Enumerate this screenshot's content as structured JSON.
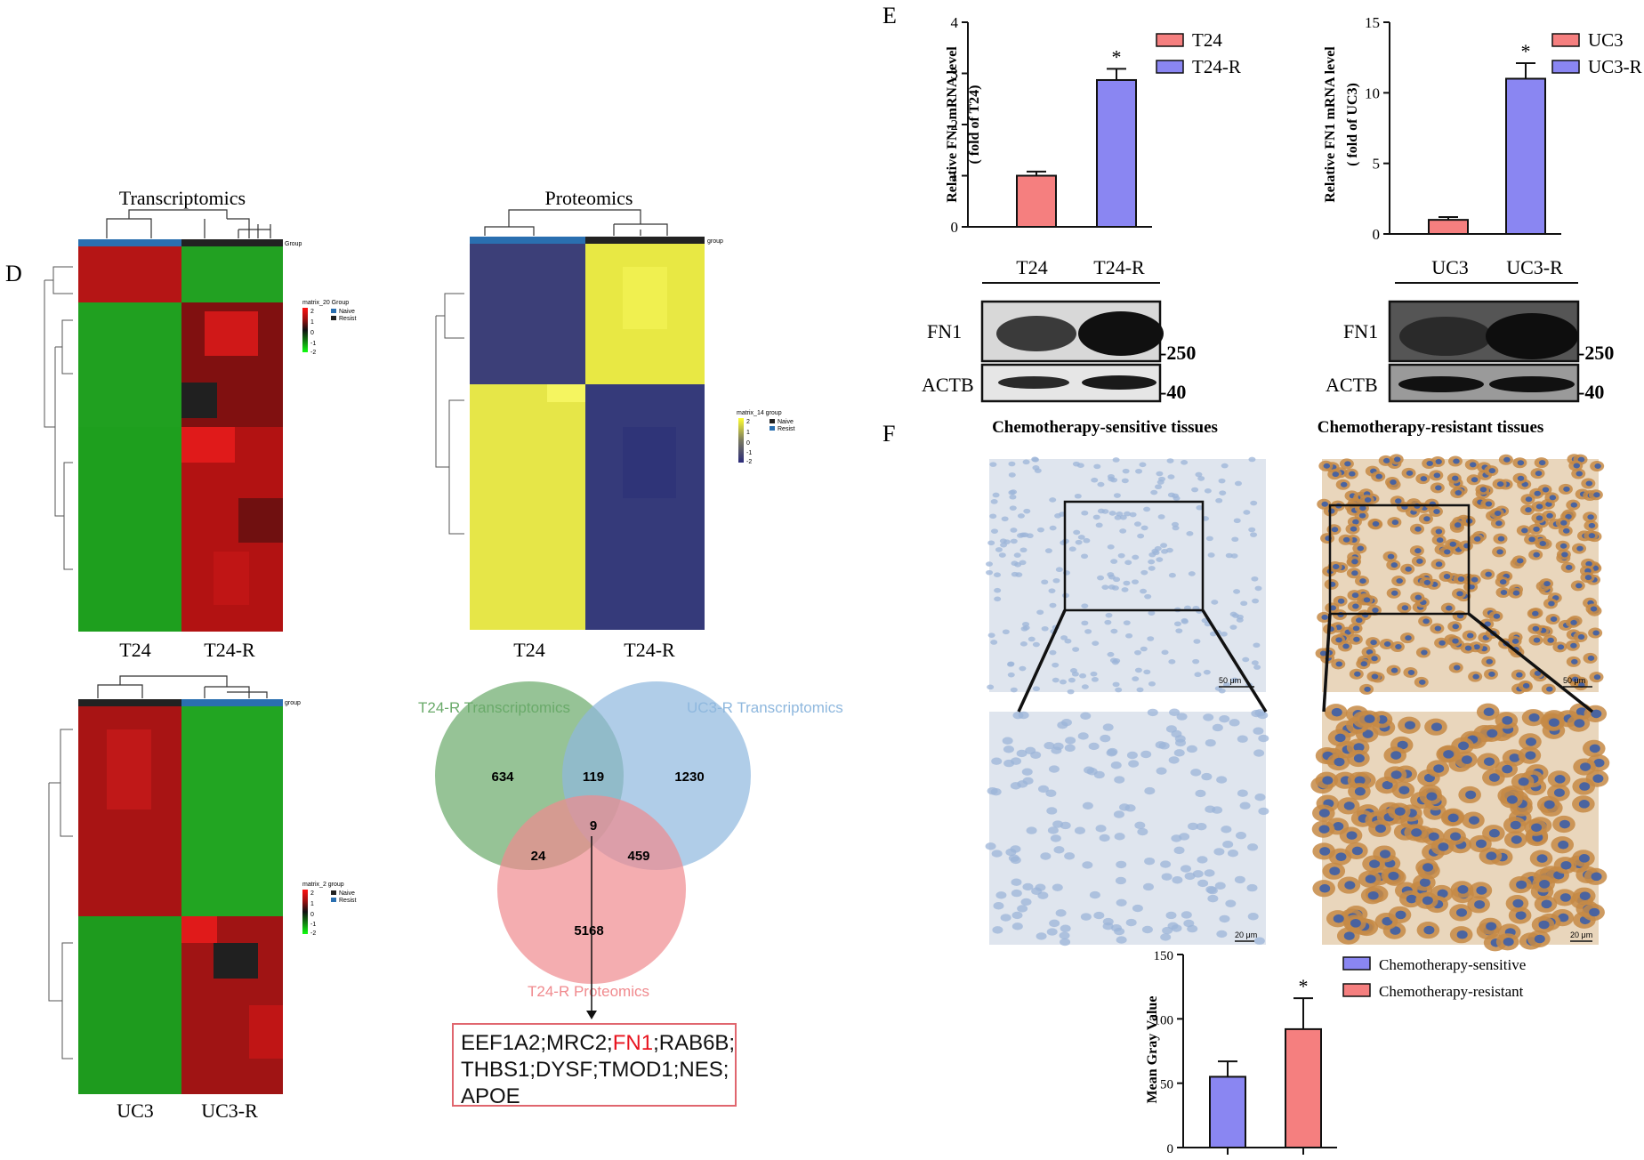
{
  "panels": {
    "d": "D",
    "e": "E",
    "f": "F"
  },
  "heatmaps": {
    "transcriptomics_t24": {
      "title": "Transcriptomics",
      "group_label": "Group",
      "legend_title": "matrix_20 Group",
      "legend_ticks": [
        "2",
        "1",
        "0",
        "-1",
        "-2"
      ],
      "legend_groups": [
        "Naive",
        "Resist"
      ],
      "x_labels": [
        "T24",
        "T24-R"
      ]
    },
    "proteomics_t24": {
      "title": "Proteomics",
      "group_label": "group",
      "legend_title": "matrix_14 group",
      "legend_ticks": [
        "2",
        "1",
        "0",
        "-1",
        "-2"
      ],
      "legend_groups": [
        "Naive",
        "Resist"
      ],
      "x_labels": [
        "T24",
        "T24-R"
      ]
    },
    "transcriptomics_uc3": {
      "group_label": "group",
      "legend_title": "matrix_2 group",
      "legend_ticks": [
        "2",
        "1",
        "0",
        "-1",
        "-2"
      ],
      "legend_groups": [
        "Naive",
        "Resist"
      ],
      "x_labels": [
        "UC3",
        "UC3-R"
      ]
    }
  },
  "venn": {
    "sets": [
      {
        "name": "T24-R Transcriptomics",
        "color": "#6aaa6a"
      },
      {
        "name": "UC3-R Transcriptomics",
        "color": "#8fb8de"
      },
      {
        "name": "T24-R Proteomics",
        "color": "#f08a8e"
      }
    ],
    "counts": {
      "a_only": "634",
      "ab": "119",
      "b_only": "1230",
      "abc": "9",
      "ac": "24",
      "bc": "459",
      "c_only": "5168"
    },
    "genes": {
      "before": "EEF1A2;MRC2;",
      "highlight": "FN1",
      "after": ";RAB6B; THBS1;DYSF;TMOD1;NES; APOE"
    }
  },
  "chart_data": [
    {
      "type": "bar",
      "id": "fn1_mrna_t24",
      "categories": [
        "T24",
        "T24-R"
      ],
      "values": [
        1.0,
        2.87
      ],
      "errors": [
        0.08,
        0.22
      ],
      "colors": [
        "#f57f7f",
        "#8a86f2"
      ],
      "ylabel": "Relative FN1 mRNA level",
      "ylabel2": "( fold of T24)",
      "ylim": [
        0,
        4
      ],
      "yticks": [
        "0",
        "1",
        "2",
        "3",
        "4"
      ],
      "legend": [
        "T24",
        "T24-R"
      ],
      "significance": "*"
    },
    {
      "type": "bar",
      "id": "fn1_mrna_uc3",
      "categories": [
        "UC3",
        "UC3-R"
      ],
      "values": [
        1.0,
        11.0
      ],
      "errors": [
        0.2,
        1.1
      ],
      "colors": [
        "#f57f7f",
        "#8a86f2"
      ],
      "ylabel": "Relative FN1 mRNA level",
      "ylabel2": "( fold of UC3)",
      "ylim": [
        0,
        15
      ],
      "yticks": [
        "0",
        "5",
        "10",
        "15"
      ],
      "legend": [
        "UC3",
        "UC3-R"
      ],
      "significance": "*"
    },
    {
      "type": "bar",
      "id": "mean_gray_value",
      "categories": [
        "Chemotherapy-sensitive",
        "Chemotherapy-resistant"
      ],
      "values": [
        55,
        92
      ],
      "errors": [
        12,
        24
      ],
      "colors": [
        "#8a86f2",
        "#f57f7f"
      ],
      "ylabel": "Mean Gray Value",
      "ylim": [
        0,
        150
      ],
      "yticks": [
        "0",
        "50",
        "100",
        "150"
      ],
      "legend": [
        "Chemotherapy-sensitive",
        "Chemotherapy-resistant"
      ],
      "significance": "*"
    }
  ],
  "western": {
    "t24": {
      "lanes": [
        "T24",
        "T24-R"
      ],
      "proteins": [
        "FN1",
        "ACTB"
      ],
      "markers": [
        "-250",
        "-40"
      ]
    },
    "uc3": {
      "lanes": [
        "UC3",
        "UC3-R"
      ],
      "proteins": [
        "FN1",
        "ACTB"
      ],
      "markers": [
        "-250",
        "-40"
      ]
    }
  },
  "ihc": {
    "sensitive_title": "Chemotherapy-sensitive tissues",
    "resistant_title": "Chemotherapy-resistant tissues",
    "scale_low": "50 μm",
    "scale_high": "20 μm",
    "colors": {
      "sensitive_bg": "#dfe5ee",
      "sensitive_cell": "#9cb4d8",
      "resistant_bg": "#e9d6bc",
      "resistant_cell": "#c58a45",
      "resistant_nucleus": "#3c5ea8"
    }
  }
}
